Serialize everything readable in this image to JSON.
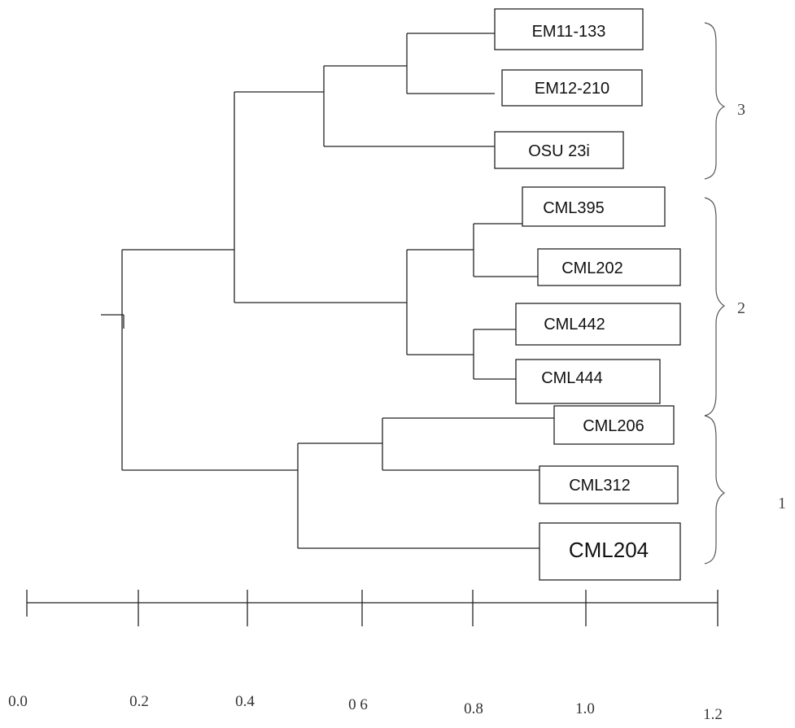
{
  "dendrogram": {
    "leaves": [
      "EM11-133",
      "EM12-210",
      "OSU 23i",
      "CML395",
      "CML202",
      "CML442",
      "CML444",
      "CML206",
      "CML312",
      "CML204"
    ],
    "clusters": [
      {
        "id": "3",
        "members": [
          "EM11-133",
          "EM12-210",
          "OSU 23i"
        ]
      },
      {
        "id": "2",
        "members": [
          "CML395",
          "CML202",
          "CML442",
          "CML444"
        ]
      },
      {
        "id": "1",
        "members": [
          "CML206",
          "CML312",
          "CML204"
        ]
      }
    ]
  },
  "axis": {
    "tick_labels": [
      "0.0",
      "0.2",
      "0.4",
      "0 6",
      "0.8",
      "1.0",
      "1.2"
    ]
  }
}
